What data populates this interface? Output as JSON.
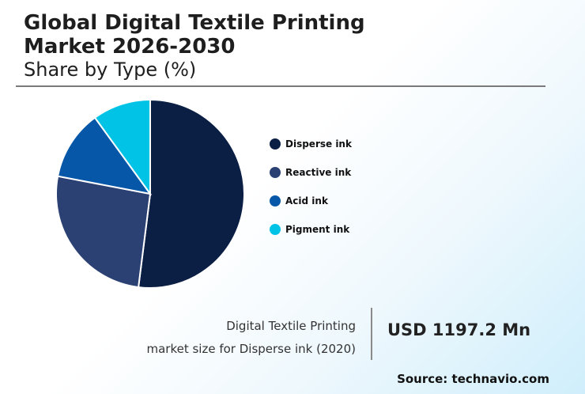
{
  "header": {
    "title_line1": "Global Digital Textile Printing",
    "title_line2": "Market 2026-2030",
    "subtitle": "Share by Type (%)"
  },
  "chart_data": {
    "type": "pie",
    "title": "Global Digital Textile Printing Market 2026-2030",
    "subtitle": "Share by Type (%)",
    "categories": [
      "Disperse ink",
      "Reactive ink",
      "Acid ink",
      "Pigment ink"
    ],
    "values": [
      52,
      26,
      12,
      10
    ],
    "colors": [
      "#0b1f45",
      "#2b4173",
      "#0657a8",
      "#00c3e6"
    ],
    "legend_position": "right"
  },
  "footer": {
    "market_label_line1": "Digital Textile Printing",
    "market_label_line2": "market size for Disperse ink (2020)",
    "market_value": "USD 1197.2 Mn",
    "source": "Source: technavio.com"
  }
}
